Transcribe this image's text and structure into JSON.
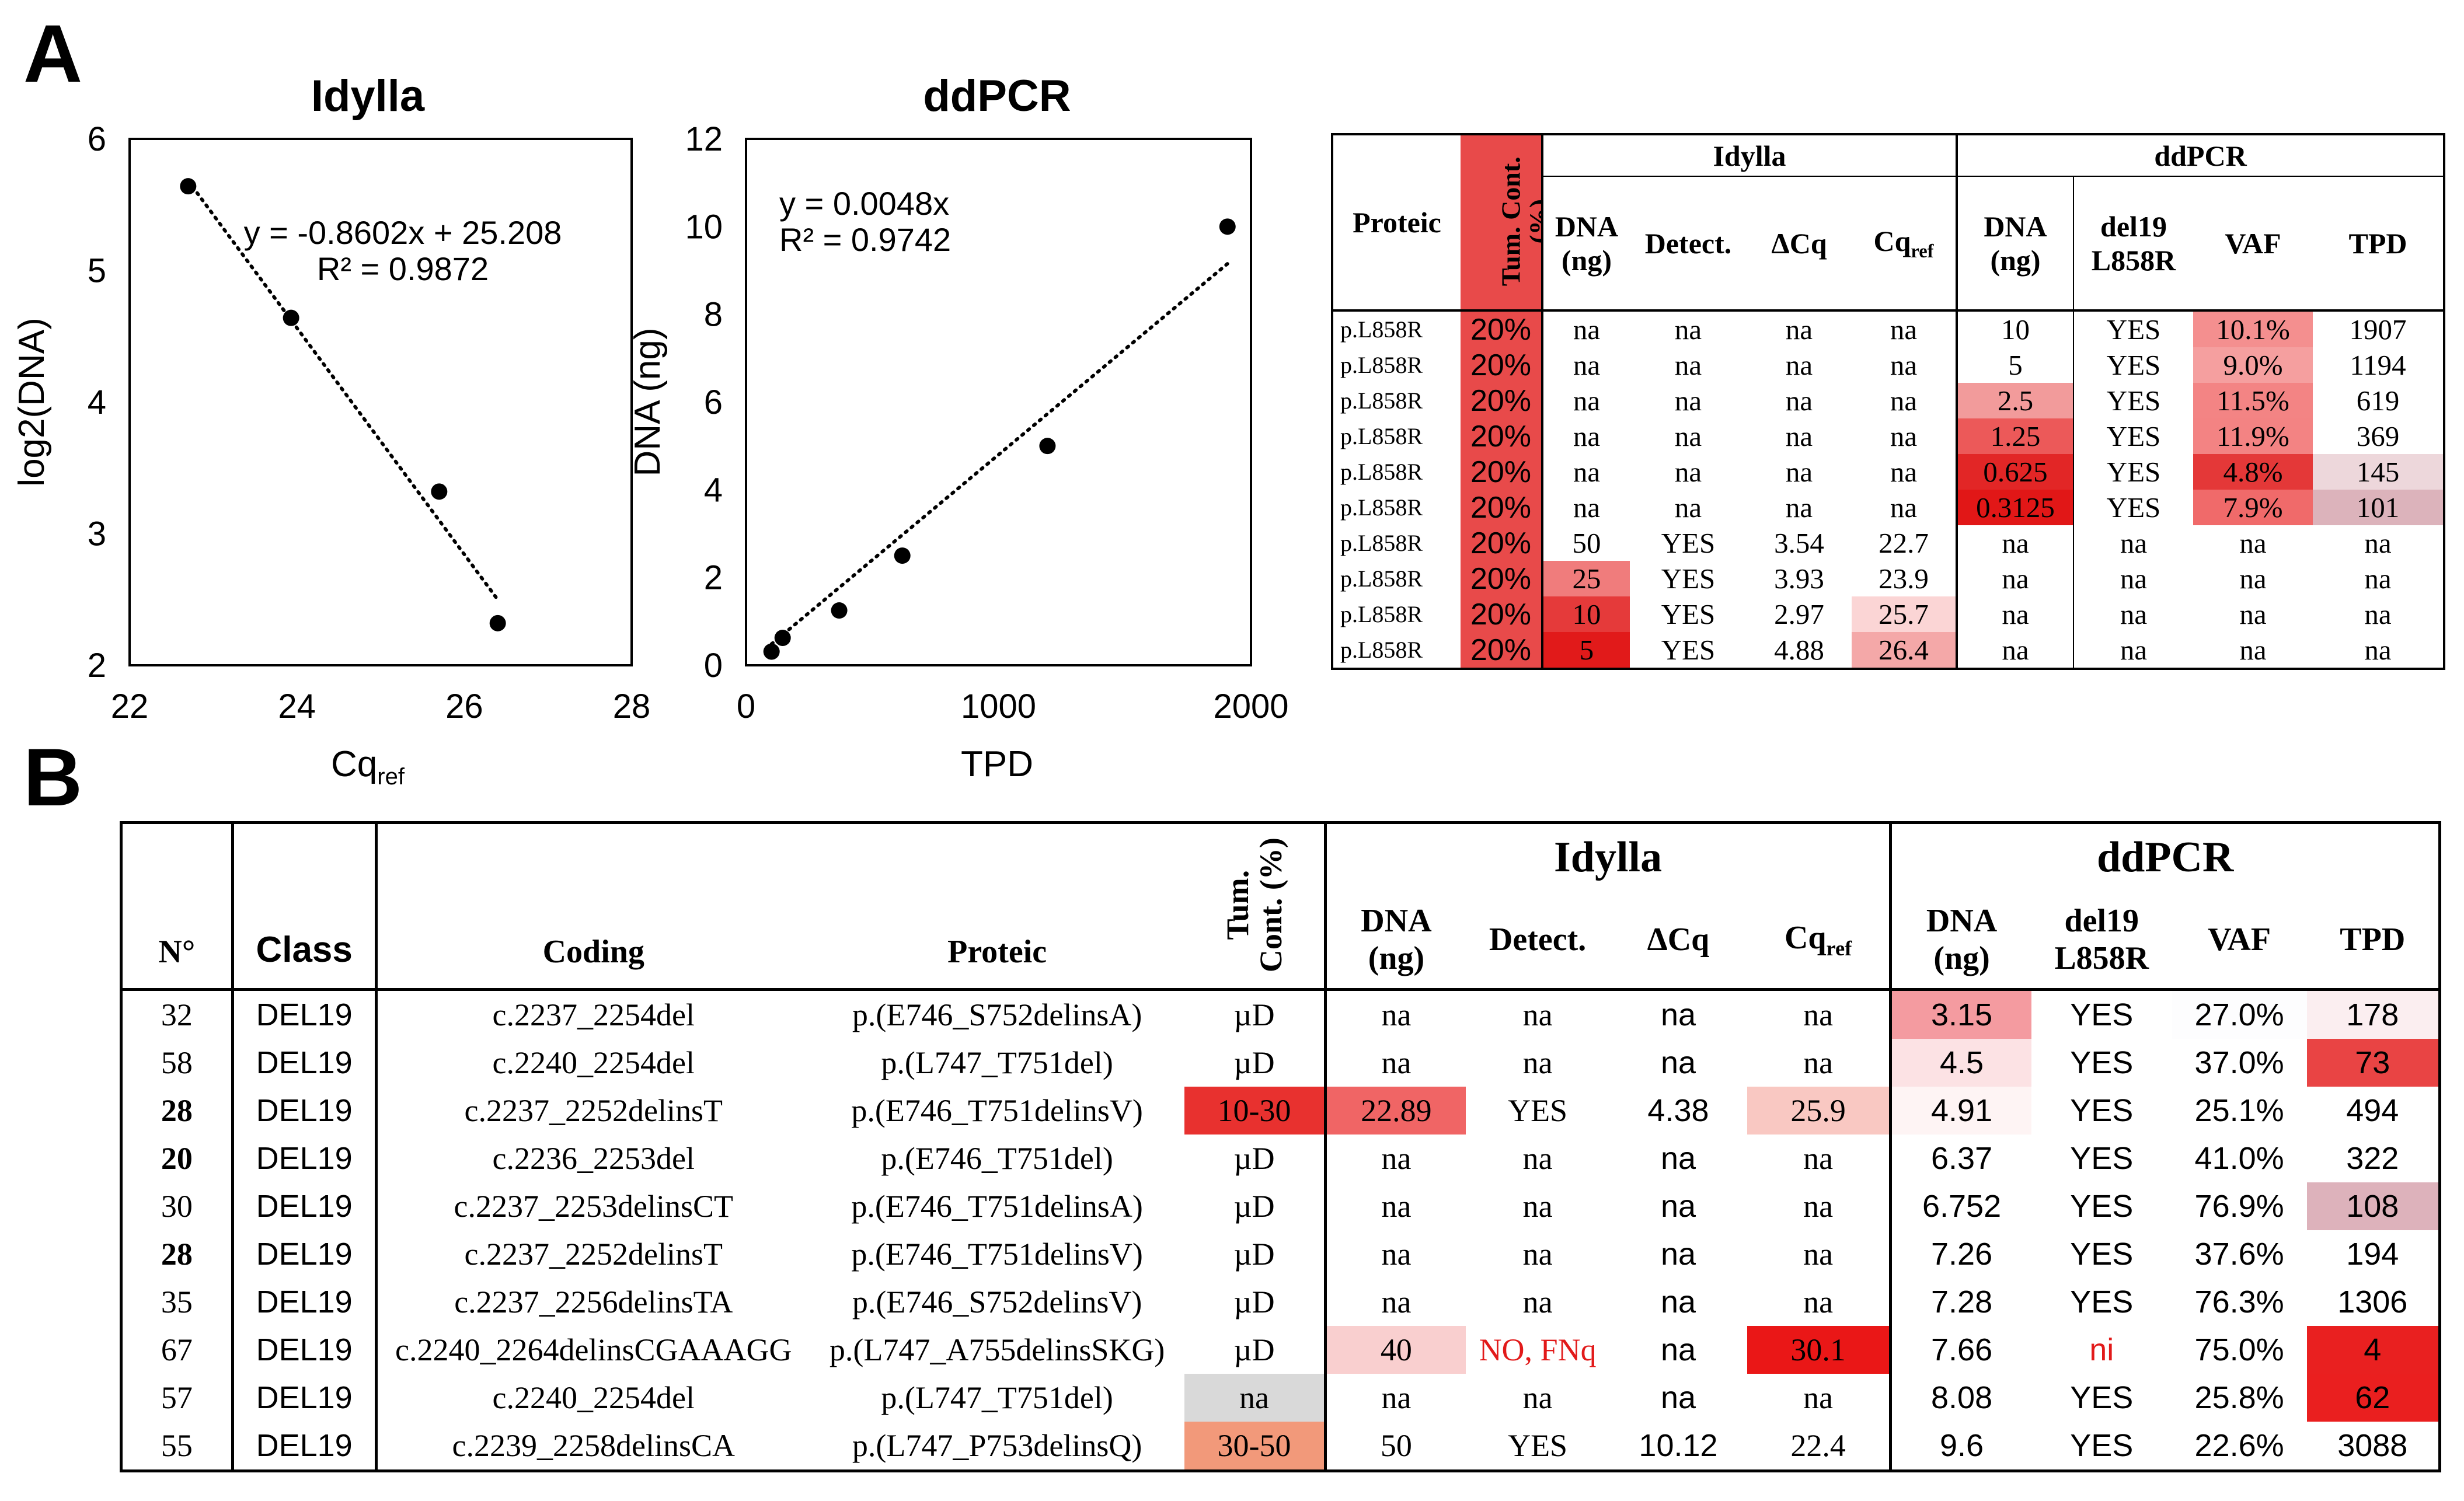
{
  "panels": {
    "a": "A",
    "b": "B"
  },
  "chart_data": [
    {
      "type": "scatter",
      "title": "Idylla",
      "xlabel": "Cq",
      "xlabel_sub": "ref",
      "ylabel": "log2(DNA)",
      "xlim": [
        22,
        28
      ],
      "ylim": [
        2,
        6
      ],
      "xticks": [
        "22",
        "24",
        "26",
        "28"
      ],
      "yticks": [
        "2",
        "3",
        "4",
        "5",
        "6"
      ],
      "x": [
        22.7,
        23.93,
        25.7,
        26.4
      ],
      "y": [
        5.64,
        4.64,
        3.32,
        2.32
      ],
      "trendline": {
        "slope": -0.8602,
        "intercept": 25.208,
        "equation": "y = -0.8602x + 25.208",
        "r2": "R² = 0.9872"
      }
    },
    {
      "type": "scatter",
      "title": "ddPCR",
      "xlabel": "TPD",
      "ylabel": "DNA (ng)",
      "xlim": [
        0,
        2000
      ],
      "ylim": [
        0,
        12
      ],
      "xticks": [
        "0",
        "1000",
        "2000"
      ],
      "yticks": [
        "0",
        "2",
        "4",
        "6",
        "8",
        "10",
        "12"
      ],
      "x": [
        1907,
        1194,
        619,
        369,
        145,
        101
      ],
      "y": [
        10,
        5,
        2.5,
        1.25,
        0.625,
        0.3125
      ],
      "trendline": {
        "slope": 0.0048,
        "intercept": 0,
        "equation": "y = 0.0048x",
        "r2": "R² = 0.9742"
      }
    }
  ],
  "tableA": {
    "headers": {
      "proteic": "Proteic",
      "tum1": "Tum. Cont.",
      "tum2": "(%)",
      "idylla": "Idylla",
      "ddpcr": "ddPCR",
      "dna1": "DNA",
      "dna2": "(ng)",
      "detect": "Detect.",
      "dcq": "ΔCq",
      "cq": "Cq",
      "cq_sub": "ref",
      "mut1": "del19",
      "mut2": "L858R",
      "vaf": "VAF",
      "tpd": "TPD"
    },
    "rows": [
      {
        "prot": "p.L858R",
        "tum": "20%",
        "dna_i": "na",
        "det": "na",
        "dcq": "na",
        "cq": "na",
        "dna_d": "10",
        "mut": "YES",
        "vaf": "10.1%",
        "tpd": "1907"
      },
      {
        "prot": "p.L858R",
        "tum": "20%",
        "dna_i": "na",
        "det": "na",
        "dcq": "na",
        "cq": "na",
        "dna_d": "5",
        "mut": "YES",
        "vaf": "9.0%",
        "tpd": "1194"
      },
      {
        "prot": "p.L858R",
        "tum": "20%",
        "dna_i": "na",
        "det": "na",
        "dcq": "na",
        "cq": "na",
        "dna_d": "2.5",
        "mut": "YES",
        "vaf": "11.5%",
        "tpd": "619"
      },
      {
        "prot": "p.L858R",
        "tum": "20%",
        "dna_i": "na",
        "det": "na",
        "dcq": "na",
        "cq": "na",
        "dna_d": "1.25",
        "mut": "YES",
        "vaf": "11.9%",
        "tpd": "369"
      },
      {
        "prot": "p.L858R",
        "tum": "20%",
        "dna_i": "na",
        "det": "na",
        "dcq": "na",
        "cq": "na",
        "dna_d": "0.625",
        "mut": "YES",
        "vaf": "4.8%",
        "tpd": "145"
      },
      {
        "prot": "p.L858R",
        "tum": "20%",
        "dna_i": "na",
        "det": "na",
        "dcq": "na",
        "cq": "na",
        "dna_d": "0.3125",
        "mut": "YES",
        "vaf": "7.9%",
        "tpd": "101"
      },
      {
        "prot": "p.L858R",
        "tum": "20%",
        "dna_i": "50",
        "det": "YES",
        "dcq": "3.54",
        "cq": "22.7",
        "dna_d": "na",
        "mut": "na",
        "vaf": "na",
        "tpd": "na"
      },
      {
        "prot": "p.L858R",
        "tum": "20%",
        "dna_i": "25",
        "det": "YES",
        "dcq": "3.93",
        "cq": "23.9",
        "dna_d": "na",
        "mut": "na",
        "vaf": "na",
        "tpd": "na"
      },
      {
        "prot": "p.L858R",
        "tum": "20%",
        "dna_i": "10",
        "det": "YES",
        "dcq": "2.97",
        "cq": "25.7",
        "dna_d": "na",
        "mut": "na",
        "vaf": "na",
        "tpd": "na"
      },
      {
        "prot": "p.L858R",
        "tum": "20%",
        "dna_i": "5",
        "det": "YES",
        "dcq": "4.88",
        "cq": "26.4",
        "dna_d": "na",
        "mut": "na",
        "vaf": "na",
        "tpd": "na"
      }
    ],
    "colors": {
      "tum": [
        "#e84a4a",
        "#e84a4a",
        "#e84a4a",
        "#e84a4a",
        "#e84a4a",
        "#e84a4a",
        "#e84a4a",
        "#e84a4a",
        "#e84a4a",
        "#e84a4a"
      ],
      "dna_i": [
        "",
        "",
        "",
        "",
        "",
        "",
        "",
        "#f07c7c",
        "#e53a3a",
        "#e11a1a"
      ],
      "cq": [
        "",
        "",
        "",
        "",
        "",
        "",
        "",
        "",
        "#fbd5d5",
        "#f4a8a8"
      ],
      "dna_d": [
        "",
        "",
        "#f29b9b",
        "#ec5959",
        "#e22626",
        "#e11717",
        "",
        "",
        "",
        ""
      ],
      "vaf": [
        "#f48f8f",
        "#f59f9f",
        "#f38484",
        "#f38383",
        "#e43838",
        "#f06a6a",
        "",
        "",
        "",
        ""
      ],
      "tpd": [
        "",
        "",
        "",
        "",
        "#edd7db",
        "#dcb3bb",
        "",
        "",
        "",
        ""
      ]
    }
  },
  "tableB": {
    "headers": {
      "no": "N°",
      "class": "Class",
      "coding": "Coding",
      "proteic": "Proteic",
      "tum1": "Tum.",
      "tum2": "Cont. (%)",
      "idylla": "Idylla",
      "ddpcr": "ddPCR",
      "dna1": "DNA",
      "dna2": "(ng)",
      "detect": "Detect.",
      "dcq": "ΔCq",
      "cq": "Cq",
      "cq_sub": "ref",
      "mut1": "del19",
      "mut2": "L858R",
      "vaf": "VAF",
      "tpd": "TPD"
    },
    "rows": [
      {
        "no": "32",
        "cls": "DEL19",
        "coding": "c.2237_2254del",
        "prot": "p.(E746_S752delinsA)",
        "tum": "µD",
        "dna_i": "na",
        "det": "na",
        "dcq": "na",
        "cq": "na",
        "dna_d": "3.15",
        "mut": "YES",
        "vaf": "27.0%",
        "tpd": "178"
      },
      {
        "no": "58",
        "cls": "DEL19",
        "coding": "c.2240_2254del",
        "prot": "p.(L747_T751del)",
        "tum": "µD",
        "dna_i": "na",
        "det": "na",
        "dcq": "na",
        "cq": "na",
        "dna_d": "4.5",
        "mut": "YES",
        "vaf": "37.0%",
        "tpd": "73"
      },
      {
        "no": "28",
        "cls": "DEL19",
        "coding": "c.2237_2252delinsT",
        "prot": "p.(E746_T751delinsV)",
        "tum": "10-30",
        "dna_i": "22.89",
        "det": "YES",
        "dcq": "4.38",
        "cq": "25.9",
        "dna_d": "4.91",
        "mut": "YES",
        "vaf": "25.1%",
        "tpd": "494"
      },
      {
        "no": "20",
        "cls": "DEL19",
        "coding": "c.2236_2253del",
        "prot": "p.(E746_T751del)",
        "tum": "µD",
        "dna_i": "na",
        "det": "na",
        "dcq": "na",
        "cq": "na",
        "dna_d": "6.37",
        "mut": "YES",
        "vaf": "41.0%",
        "tpd": "322"
      },
      {
        "no": "30",
        "cls": "DEL19",
        "coding": "c.2237_2253delinsCT",
        "prot": "p.(E746_T751delinsA)",
        "tum": "µD",
        "dna_i": "na",
        "det": "na",
        "dcq": "na",
        "cq": "na",
        "dna_d": "6.752",
        "mut": "YES",
        "vaf": "76.9%",
        "tpd": "108"
      },
      {
        "no": "28",
        "cls": "DEL19",
        "coding": "c.2237_2252delinsT",
        "prot": "p.(E746_T751delinsV)",
        "tum": "µD",
        "dna_i": "na",
        "det": "na",
        "dcq": "na",
        "cq": "na",
        "dna_d": "7.26",
        "mut": "YES",
        "vaf": "37.6%",
        "tpd": "194"
      },
      {
        "no": "35",
        "cls": "DEL19",
        "coding": "c.2237_2256delinsTA",
        "prot": "p.(E746_S752delinsV)",
        "tum": "µD",
        "dna_i": "na",
        "det": "na",
        "dcq": "na",
        "cq": "na",
        "dna_d": "7.28",
        "mut": "YES",
        "vaf": "76.3%",
        "tpd": "1306"
      },
      {
        "no": "67",
        "cls": "DEL19",
        "coding": "c.2240_2264delinsCGAAAGG",
        "prot": "p.(L747_A755delinsSKG)",
        "tum": "µD",
        "dna_i": "40",
        "det": "NO, FNq",
        "dcq": "na",
        "cq": "30.1",
        "dna_d": "7.66",
        "mut": "ni",
        "vaf": "75.0%",
        "tpd": "4"
      },
      {
        "no": "57",
        "cls": "DEL19",
        "coding": "c.2240_2254del",
        "prot": "p.(L747_T751del)",
        "tum": "na",
        "dna_i": "na",
        "det": "na",
        "dcq": "na",
        "cq": "na",
        "dna_d": "8.08",
        "mut": "YES",
        "vaf": "25.8%",
        "tpd": "62"
      },
      {
        "no": "55",
        "cls": "DEL19",
        "coding": "c.2239_2258delinsCA",
        "prot": "p.(L747_P753delinsQ)",
        "tum": "30-50",
        "dna_i": "50",
        "det": "YES",
        "dcq": "10.12",
        "cq": "22.4",
        "dna_d": "9.6",
        "mut": "YES",
        "vaf": "22.6%",
        "tpd": "3088"
      }
    ],
    "colors": {
      "tum": [
        "",
        "",
        "#e8312f",
        "",
        "",
        "",
        "",
        "",
        "#d9d9d9",
        "#f2997a"
      ],
      "dna_i": [
        "",
        "",
        "#f06565",
        "",
        "",
        "",
        "",
        "#f9cfcf",
        "",
        ""
      ],
      "cq": [
        "",
        "",
        "#f9c8c2",
        "",
        "",
        "",
        "",
        "#ea1717",
        "",
        ""
      ],
      "dna_d": [
        "#f49ba0",
        "#fce2e4",
        "#fef4f4",
        "",
        "",
        "",
        "",
        "",
        "",
        ""
      ],
      "tpd": [
        "#fbeef0",
        "#e94444",
        "",
        "",
        "#ddb2bb",
        "",
        "",
        "#e92020",
        "#ea1f1f",
        ""
      ],
      "vaf": [
        "#fdfdfe",
        "",
        "",
        "",
        "",
        "",
        "",
        "",
        "",
        ""
      ],
      "red_text": "#e21a1a"
    }
  }
}
